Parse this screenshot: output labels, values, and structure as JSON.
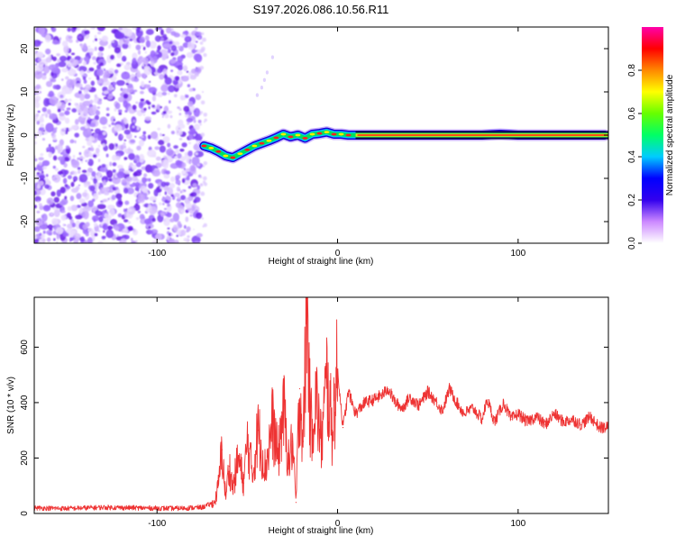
{
  "title": "S197.2026.086.10.56.R11",
  "colorbar": {
    "label": "Normalized spectral amplitude",
    "ticks": [
      "0.0",
      "0.2",
      "0.4",
      "0.6",
      "0.8"
    ],
    "tick_values": [
      0.0,
      0.2,
      0.4,
      0.6,
      0.8
    ],
    "range": [
      0,
      1
    ],
    "colors": [
      "#ffffff",
      "#cc88ff",
      "#3300ee",
      "#0000ff",
      "#00ccff",
      "#00ff66",
      "#66ff00",
      "#ffff00",
      "#ff8800",
      "#ff0000",
      "#ff00aa"
    ]
  },
  "chart_data": [
    {
      "type": "heatmap",
      "name": "spectrogram",
      "xlabel": "Height of straight line (km)",
      "ylabel": "Frequency (Hz)",
      "xlim": [
        -168,
        150
      ],
      "ylim": [
        -25,
        25
      ],
      "x_ticks": [
        -100,
        0,
        100
      ],
      "x_tick_labels": [
        "-100",
        "0",
        "100"
      ],
      "y_ticks": [
        -20,
        -10,
        0,
        10,
        20
      ],
      "y_tick_labels": [
        "-20",
        "-10",
        "0",
        "10",
        "20"
      ],
      "noise_region": {
        "x": [
          -168,
          -76
        ],
        "y": [
          -25,
          25
        ],
        "amplitude_range": [
          0.0,
          0.2
        ]
      },
      "signal_track": {
        "x": [
          -74,
          -70,
          -66,
          -62,
          -58,
          -54,
          -50,
          -46,
          -42,
          -38,
          -34,
          -30,
          -26,
          -22,
          -18,
          -14,
          -10,
          -6,
          -2,
          2,
          6,
          10,
          20,
          40,
          60,
          80,
          90,
          100,
          120,
          140,
          148
        ],
        "y": [
          -2.5,
          -3.0,
          -3.8,
          -4.8,
          -5.2,
          -4.3,
          -3.4,
          -2.5,
          -1.9,
          -1.3,
          -0.6,
          0.2,
          -0.4,
          0.0,
          -0.7,
          0.2,
          0.4,
          0.7,
          0.2,
          0.2,
          0.0,
          0.0,
          0.0,
          0.0,
          0.0,
          0.0,
          0.2,
          0.0,
          0.0,
          0.0,
          0.0
        ]
      },
      "faint_streak": {
        "x": [
          -52,
          -42,
          -36
        ],
        "y": [
          4,
          11,
          18
        ]
      }
    },
    {
      "type": "line",
      "name": "snr",
      "xlabel": "Height of straight line (km)",
      "ylabel": "SNR (10 * v/v)",
      "xlim": [
        -168,
        150
      ],
      "ylim": [
        0,
        780
      ],
      "x_ticks": [
        -100,
        0,
        100
      ],
      "x_tick_labels": [
        "-100",
        "0",
        "100"
      ],
      "y_ticks": [
        0,
        200,
        400,
        600
      ],
      "y_tick_labels": [
        "0",
        "200",
        "400",
        "600"
      ],
      "color": "#ee3333",
      "series": [
        {
          "name": "SNR",
          "x": [
            -168,
            -150,
            -130,
            -110,
            -90,
            -75,
            -68,
            -66,
            -64,
            -62,
            -60,
            -58,
            -55,
            -52,
            -50,
            -47,
            -44,
            -40,
            -36,
            -33,
            -30,
            -27,
            -25,
            -23,
            -21,
            -19,
            -17,
            -15,
            -12,
            -9,
            -6,
            -3,
            0,
            3,
            6,
            10,
            15,
            20,
            25,
            28,
            32,
            36,
            40,
            45,
            50,
            55,
            58,
            62,
            66,
            70,
            75,
            80,
            83,
            87,
            92,
            96,
            100,
            105,
            110,
            115,
            120,
            125,
            130,
            135,
            140,
            145,
            150
          ],
          "y": [
            20,
            18,
            22,
            20,
            18,
            22,
            40,
            100,
            230,
            60,
            170,
            90,
            200,
            110,
            260,
            140,
            300,
            160,
            330,
            200,
            380,
            180,
            260,
            40,
            450,
            260,
            780,
            300,
            420,
            250,
            480,
            300,
            520,
            310,
            440,
            360,
            400,
            410,
            430,
            450,
            400,
            380,
            420,
            390,
            440,
            400,
            370,
            450,
            400,
            360,
            380,
            340,
            410,
            330,
            400,
            340,
            360,
            330,
            350,
            320,
            360,
            330,
            340,
            320,
            350,
            310,
            310
          ]
        }
      ]
    }
  ]
}
